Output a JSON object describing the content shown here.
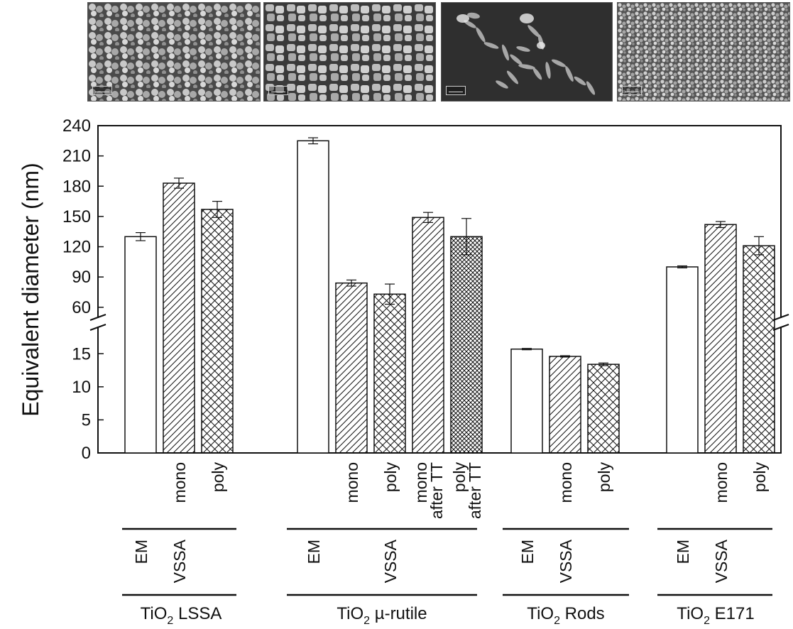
{
  "chart_data": {
    "type": "bar",
    "ylabel": "Equivalent diameter (nm)",
    "axis_break": {
      "lower_range": [
        0,
        19
      ],
      "upper_range": [
        50,
        240
      ]
    },
    "yticks_upper": [
      "60",
      "90",
      "120",
      "150",
      "180",
      "210",
      "240"
    ],
    "yticks_lower": [
      "0",
      "5",
      "10",
      "15"
    ],
    "groups": [
      {
        "sample": "TiO",
        "subscript": "2",
        "sample_suffix": "LSSA",
        "methods": [
          "EM",
          "VSSA"
        ],
        "bars": [
          {
            "label": "",
            "method": "EM",
            "pattern": "none",
            "value": 130,
            "error": 4
          },
          {
            "label": "mono",
            "method": "VSSA",
            "pattern": "hatch",
            "value": 183,
            "error": 5
          },
          {
            "label": "poly",
            "method": "VSSA",
            "pattern": "cross",
            "value": 157,
            "error": 8
          }
        ]
      },
      {
        "sample": "TiO",
        "subscript": "2",
        "sample_suffix": "µ-rutile",
        "methods": [
          "EM",
          "VSSA"
        ],
        "bars": [
          {
            "label": "",
            "method": "EM",
            "pattern": "none",
            "value": 225,
            "error": 3
          },
          {
            "label": "mono",
            "method": "VSSA",
            "pattern": "hatch",
            "value": 84,
            "error": 3
          },
          {
            "label": "poly",
            "method": "VSSA",
            "pattern": "cross",
            "value": 73,
            "error": 10
          },
          {
            "label": "mono",
            "label2": "after TT",
            "method": "VSSA",
            "pattern": "hatch",
            "value": 149,
            "error": 5
          },
          {
            "label": "poly",
            "label2": "after TT",
            "method": "VSSA",
            "pattern": "cross-dense",
            "value": 130,
            "error": 18
          }
        ]
      },
      {
        "sample": "TiO",
        "subscript": "2",
        "sample_suffix": "Rods",
        "methods": [
          "EM",
          "VSSA"
        ],
        "bars": [
          {
            "label": "",
            "method": "EM",
            "pattern": "none",
            "value": 15.7,
            "error": 0.1
          },
          {
            "label": "mono",
            "method": "VSSA",
            "pattern": "hatch",
            "value": 14.6,
            "error": 0.1
          },
          {
            "label": "poly",
            "method": "VSSA",
            "pattern": "cross",
            "value": 13.4,
            "error": 0.2
          }
        ]
      },
      {
        "sample": "TiO",
        "subscript": "2",
        "sample_suffix": "E171",
        "methods": [
          "EM",
          "VSSA"
        ],
        "bars": [
          {
            "label": "",
            "method": "EM",
            "pattern": "none",
            "value": 100,
            "error": 1
          },
          {
            "label": "mono",
            "method": "VSSA",
            "pattern": "hatch",
            "value": 142,
            "error": 3
          },
          {
            "label": "poly",
            "method": "VSSA",
            "pattern": "cross",
            "value": 121,
            "error": 9
          }
        ]
      }
    ]
  }
}
